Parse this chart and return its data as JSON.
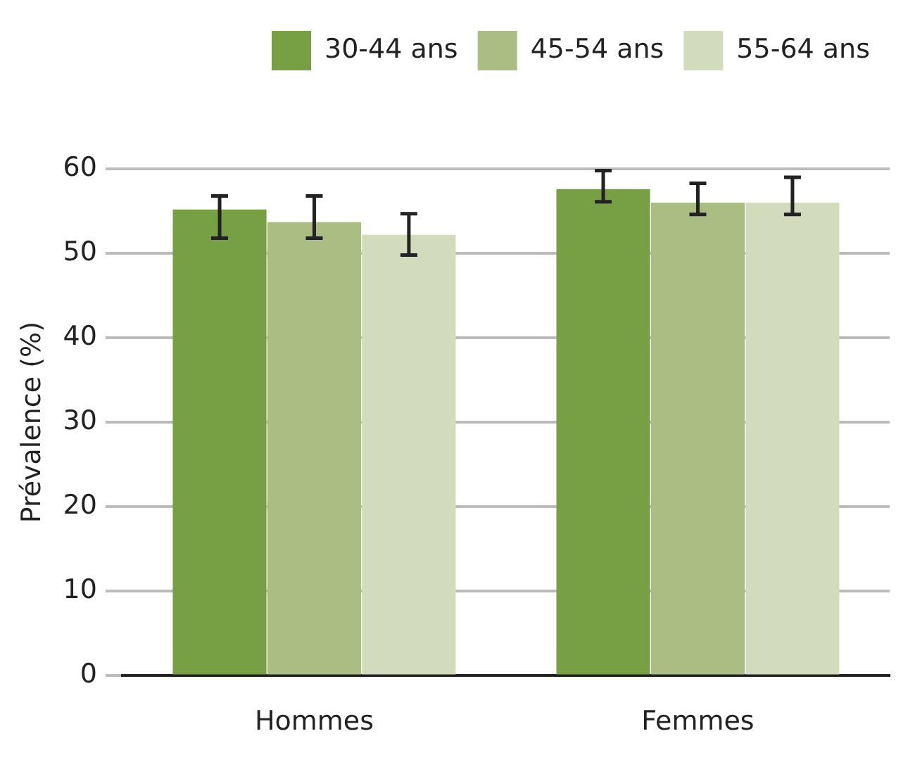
{
  "chart_data": {
    "type": "bar",
    "ylabel": "Prévalence (%)",
    "categories": [
      "Hommes",
      "Femmes"
    ],
    "series": [
      {
        "name": "30-44 ans",
        "color": "#76a043",
        "values": [
          55.2,
          57.6
        ],
        "errors": [
          [
            51.8,
            56.8
          ],
          [
            56.1,
            59.8
          ]
        ]
      },
      {
        "name": "45-54 ans",
        "color": "#aabd82",
        "values": [
          53.7,
          56.0
        ],
        "errors": [
          [
            51.8,
            56.8
          ],
          [
            54.6,
            58.3
          ]
        ]
      },
      {
        "name": "55-64 ans",
        "color": "#d2dbbb",
        "values": [
          52.2,
          56.0
        ],
        "errors": [
          [
            49.8,
            54.7
          ],
          [
            54.6,
            59.0
          ]
        ]
      }
    ],
    "ylim": [
      0,
      60
    ],
    "yticks": [
      0,
      10,
      20,
      30,
      40,
      50,
      60
    ],
    "grid": "y",
    "legend": "top right"
  }
}
